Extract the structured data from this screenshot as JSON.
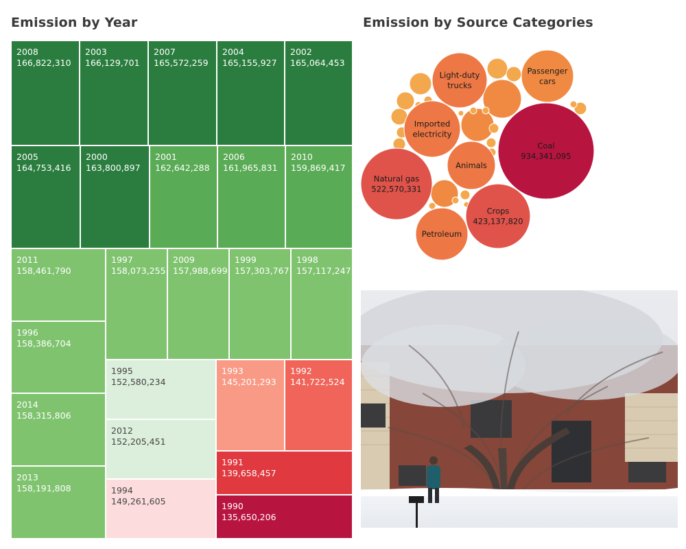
{
  "titles": {
    "treemap": "Emission by Year",
    "bubbles": "Emission by Source Categories"
  },
  "colors": {
    "dark_green": "#2a7d3e",
    "mid_green": "#5aab55",
    "light_green": "#7fc36f",
    "pale_green": "#dcefdc",
    "pale_red": "#fcdcdc",
    "salmon": "#f89a85",
    "red": "#f0645a",
    "deep_red": "#e0393f",
    "crimson": "#b81440",
    "bubble_crimson": "#b81440",
    "bubble_red": "#e0534a",
    "bubble_orange": "#ed7845",
    "bubble_amber": "#f08a42",
    "bubble_light": "#f3a84e"
  },
  "chart_data": [
    {
      "type": "treemap",
      "title": "Emission by Year",
      "items": [
        {
          "year": "2008",
          "label": "166,822,310",
          "value": 166822310
        },
        {
          "year": "2003",
          "label": "166,129,701",
          "value": 166129701
        },
        {
          "year": "2007",
          "label": "165,572,259",
          "value": 165572259
        },
        {
          "year": "2004",
          "label": "165,155,927",
          "value": 165155927
        },
        {
          "year": "2002",
          "label": "165,064,453",
          "value": 165064453
        },
        {
          "year": "2005",
          "label": "164,753,416",
          "value": 164753416
        },
        {
          "year": "2000",
          "label": "163,800,897",
          "value": 163800897
        },
        {
          "year": "2001",
          "label": "162,642,288",
          "value": 162642288
        },
        {
          "year": "2006",
          "label": "161,965,831",
          "value": 161965831
        },
        {
          "year": "2010",
          "label": "159,869,417",
          "value": 159869417
        },
        {
          "year": "2011",
          "label": "158,461,790",
          "value": 158461790
        },
        {
          "year": "1997",
          "label": "158,073,255",
          "value": 158073255
        },
        {
          "year": "2009",
          "label": "157,988,699",
          "value": 157988699
        },
        {
          "year": "1999",
          "label": "157,303,767",
          "value": 157303767
        },
        {
          "year": "1998",
          "label": "157,117,247",
          "value": 157117247
        },
        {
          "year": "1996",
          "label": "158,386,704",
          "value": 158386704
        },
        {
          "year": "2014",
          "label": "158,315,806",
          "value": 158315806
        },
        {
          "year": "2013",
          "label": "158,191,808",
          "value": 158191808
        },
        {
          "year": "1995",
          "label": "152,580,234",
          "value": 152580234
        },
        {
          "year": "2012",
          "label": "152,205,451",
          "value": 152205451
        },
        {
          "year": "1994",
          "label": "149,261,605",
          "value": 149261605
        },
        {
          "year": "1993",
          "label": "145,201,293",
          "value": 145201293
        },
        {
          "year": "1992",
          "label": "141,722,524",
          "value": 141722524
        },
        {
          "year": "1991",
          "label": "139,658,457",
          "value": 139658457
        },
        {
          "year": "1990",
          "label": "135,650,206",
          "value": 135650206
        }
      ]
    },
    {
      "type": "bubble",
      "title": "Emission by Source Categories",
      "items": [
        {
          "name": "Coal",
          "label": "934,341,095",
          "value": 934341095
        },
        {
          "name": "Natural gas",
          "label": "522,570,331",
          "value": 522570331
        },
        {
          "name": "Crops",
          "label": "423,137,820",
          "value": 423137820
        },
        {
          "name": "Imported electricity",
          "label": "",
          "value": null
        },
        {
          "name": "Light-duty trucks",
          "label": "",
          "value": null
        },
        {
          "name": "Passenger cars",
          "label": "",
          "value": null
        },
        {
          "name": "Animals",
          "label": "",
          "value": null
        },
        {
          "name": "Petroleum",
          "label": "",
          "value": null
        }
      ]
    }
  ]
}
